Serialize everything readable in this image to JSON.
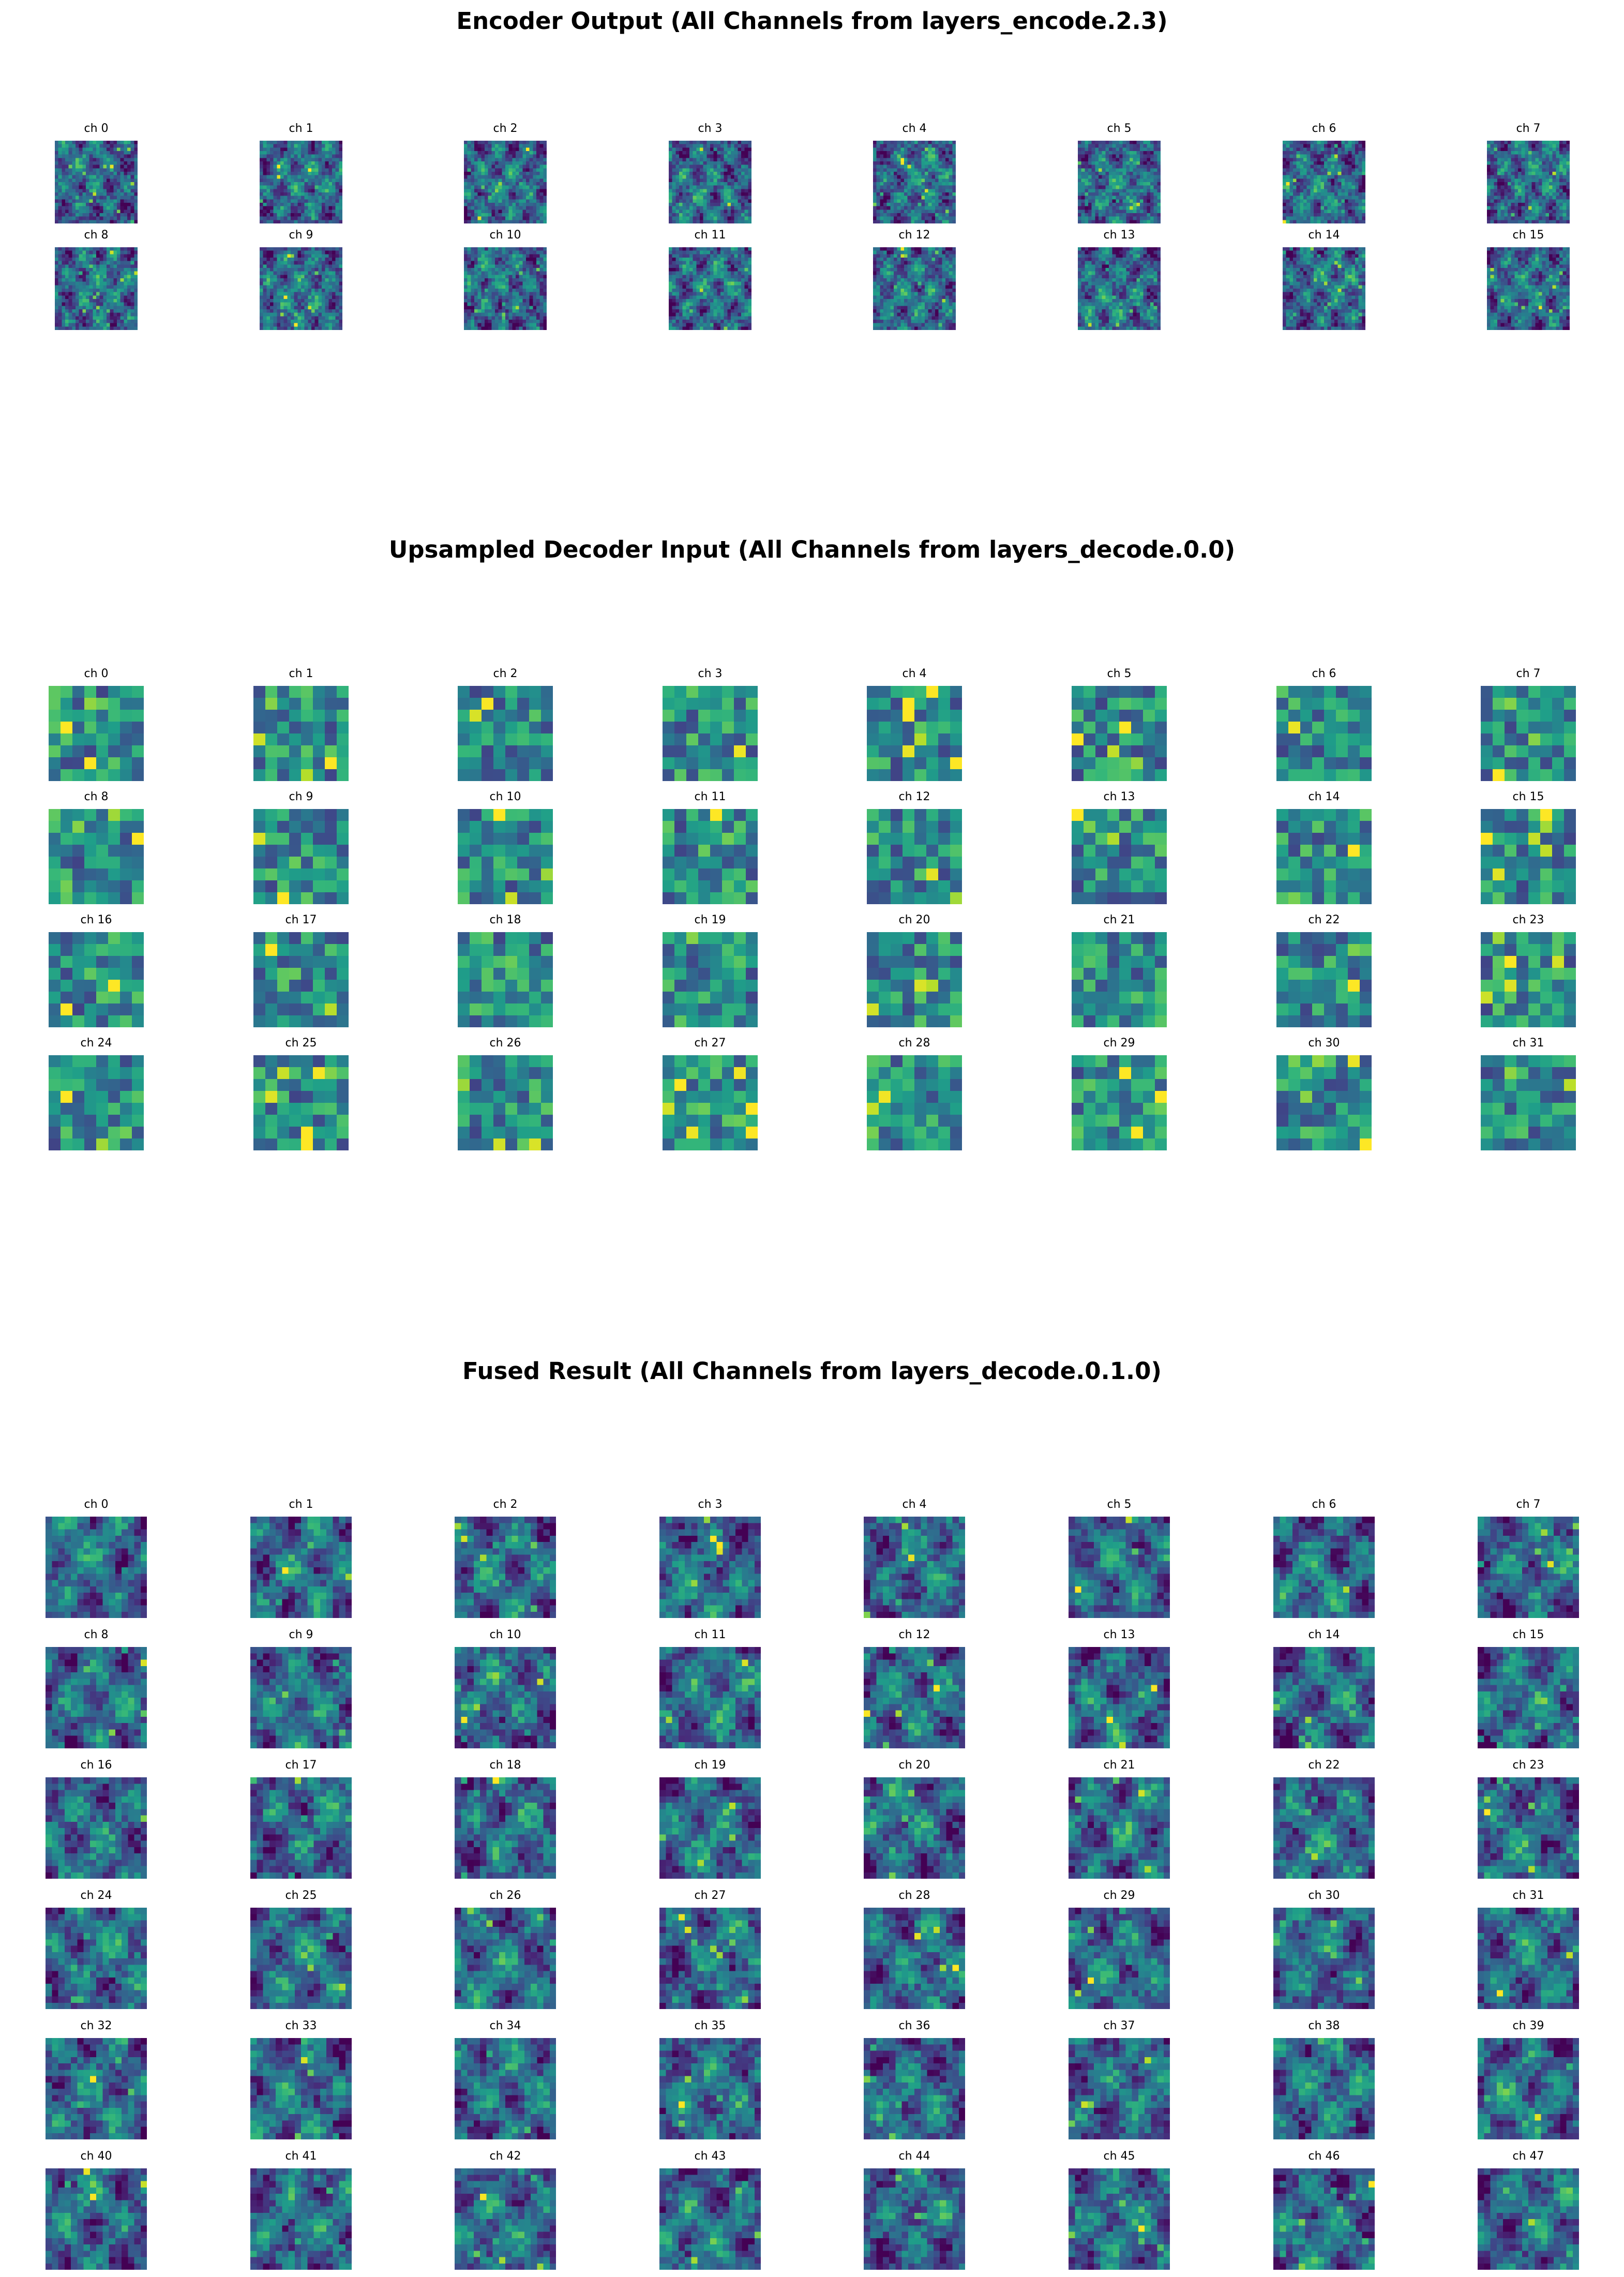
{
  "figure": {
    "colormap": "viridis",
    "colormap_stops": [
      "#440154",
      "#482878",
      "#3e4989",
      "#31688e",
      "#26828e",
      "#1f9e89",
      "#35b779",
      "#6ece58",
      "#b5de2b",
      "#fde725"
    ]
  },
  "chart_data": [
    {
      "type": "heatmap",
      "title": "Encoder Output (All Channels from layers_encode.2.3)",
      "channels": [
        "ch 0",
        "ch 1",
        "ch 2",
        "ch 3",
        "ch 4",
        "ch 5",
        "ch 6",
        "ch 7",
        "ch 8",
        "ch 9",
        "ch 10",
        "ch 11",
        "ch 12",
        "ch 13",
        "ch 14",
        "ch 15"
      ],
      "grid_size": 24,
      "rows": 2,
      "cols": 8,
      "values": "not printed; per-pixel activations shown only as viridis colour"
    },
    {
      "type": "heatmap",
      "title": "Upsampled Decoder Input (All Channels from layers_decode.0.0)",
      "channels": [
        "ch 0",
        "ch 1",
        "ch 2",
        "ch 3",
        "ch 4",
        "ch 5",
        "ch 6",
        "ch 7",
        "ch 8",
        "ch 9",
        "ch 10",
        "ch 11",
        "ch 12",
        "ch 13",
        "ch 14",
        "ch 15",
        "ch 16",
        "ch 17",
        "ch 18",
        "ch 19",
        "ch 20",
        "ch 21",
        "ch 22",
        "ch 23",
        "ch 24",
        "ch 25",
        "ch 26",
        "ch 27",
        "ch 28",
        "ch 29",
        "ch 30",
        "ch 31"
      ],
      "grid_size": 8,
      "rows": 4,
      "cols": 8,
      "values": "not printed; per-pixel activations shown only as viridis colour"
    },
    {
      "type": "heatmap",
      "title": "Fused Result (All Channels from layers_decode.0.1.0)",
      "channels": [
        "ch 0",
        "ch 1",
        "ch 2",
        "ch 3",
        "ch 4",
        "ch 5",
        "ch 6",
        "ch 7",
        "ch 8",
        "ch 9",
        "ch 10",
        "ch 11",
        "ch 12",
        "ch 13",
        "ch 14",
        "ch 15",
        "ch 16",
        "ch 17",
        "ch 18",
        "ch 19",
        "ch 20",
        "ch 21",
        "ch 22",
        "ch 23",
        "ch 24",
        "ch 25",
        "ch 26",
        "ch 27",
        "ch 28",
        "ch 29",
        "ch 30",
        "ch 31",
        "ch 32",
        "ch 33",
        "ch 34",
        "ch 35",
        "ch 36",
        "ch 37",
        "ch 38",
        "ch 39",
        "ch 40",
        "ch 41",
        "ch 42",
        "ch 43",
        "ch 44",
        "ch 45",
        "ch 46",
        "ch 47"
      ],
      "grid_size": 16,
      "rows": 6,
      "cols": 8,
      "values": "not printed; per-pixel activations shown only as viridis colour"
    }
  ]
}
